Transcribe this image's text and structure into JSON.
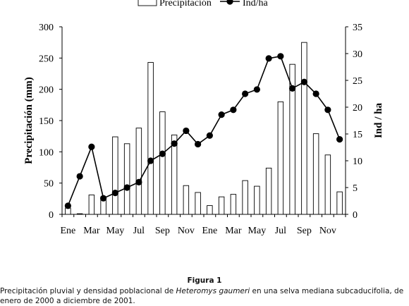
{
  "chart_data": {
    "type": "bar+line",
    "legend": {
      "placement": "top-center",
      "bar_label": "Precipitación",
      "line_label": "Ind/ha"
    },
    "x_tick_labels": [
      "Ene",
      "Mar",
      "May",
      "Jul",
      "Sep",
      "Nov",
      "Ene",
      "Mar",
      "May",
      "Jul",
      "Sep",
      "Nov"
    ],
    "months": 24,
    "y_left": {
      "label": "Precipitación (mm)",
      "range": [
        0,
        300
      ],
      "ticks": [
        "0",
        "50",
        "100",
        "150",
        "200",
        "250",
        "300"
      ]
    },
    "y_right": {
      "label": "Ind  / ha",
      "range": [
        0,
        35
      ],
      "ticks": [
        "0",
        "5",
        "10",
        "15",
        "20",
        "25",
        "30",
        "35"
      ]
    },
    "grid": false,
    "series": [
      {
        "name": "Precipitación",
        "type": "bar",
        "axis": "left",
        "values": [
          10,
          1,
          31,
          28,
          124,
          113,
          138,
          243,
          164,
          127,
          46,
          35,
          14,
          28,
          32,
          54,
          45,
          74,
          180,
          240,
          275,
          129,
          95,
          36
        ]
      },
      {
        "name": "Ind/ha",
        "type": "line",
        "axis": "right",
        "values": [
          1.6,
          7.1,
          12.6,
          3.0,
          4.0,
          5.0,
          6.0,
          10.0,
          11.3,
          13.2,
          15.6,
          13.1,
          14.7,
          18.6,
          19.5,
          22.5,
          23.3,
          29.1,
          29.5,
          23.5,
          24.7,
          22.5,
          19.5,
          14.0
        ]
      }
    ]
  },
  "caption": {
    "title": "Figura 1",
    "text_before": "Precipitación pluvial y densidad poblacional de ",
    "text_italic": "Heteromys gaumeri",
    "text_after": " en una selva mediana subcaducifolia, de enero de 2000 a diciembre de 2001."
  }
}
